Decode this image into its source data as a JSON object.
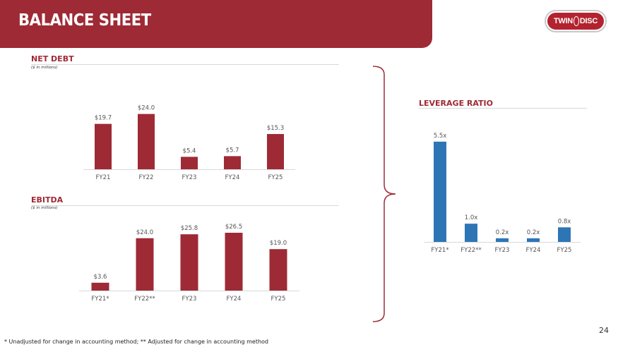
{
  "header": {
    "title": "BALANCE SHEET"
  },
  "logo": {
    "left": "TWIN",
    "right": "DISC"
  },
  "colors": {
    "brand": "#9e2a35",
    "bar_red": "#9e2a35",
    "bar_blue": "#2e75b6"
  },
  "sections": {
    "net_debt": {
      "title": "NET DEBT",
      "subtitle": "($ in millions)"
    },
    "ebitda": {
      "title": "EBITDA",
      "subtitle": "($ in millions)"
    },
    "leverage": {
      "title": "LEVERAGE RATIO"
    }
  },
  "chart_data": [
    {
      "id": "net_debt",
      "type": "bar",
      "categories": [
        "FY21",
        "FY22",
        "FY23",
        "FY24",
        "FY25"
      ],
      "values": [
        19.7,
        24.0,
        5.4,
        5.7,
        15.3
      ],
      "labels": [
        "$19.7",
        "$24.0",
        "$5.4",
        "$5.7",
        "$15.3"
      ],
      "ylim": [
        0,
        30
      ],
      "color": "#9e2a35",
      "grid": false
    },
    {
      "id": "ebitda",
      "type": "bar",
      "categories": [
        "FY21*",
        "FY22**",
        "FY23",
        "FY24",
        "FY25"
      ],
      "values": [
        3.6,
        24.0,
        25.8,
        26.5,
        19.0
      ],
      "labels": [
        "$3.6",
        "$24.0",
        "$25.8",
        "$26.5",
        "$19.0"
      ],
      "ylim": [
        0,
        32
      ],
      "color": "#9e2a35",
      "grid": false
    },
    {
      "id": "leverage",
      "type": "bar",
      "categories": [
        "FY21*",
        "FY22**",
        "FY23",
        "FY24",
        "FY25"
      ],
      "values": [
        5.5,
        1.0,
        0.2,
        0.2,
        0.8
      ],
      "labels": [
        "5.5x",
        "1.0x",
        "0.2x",
        "0.2x",
        "0.8x"
      ],
      "ylim": [
        0,
        6.5
      ],
      "color": "#2e75b6",
      "grid": false
    }
  ],
  "footnote": "* Unadjusted for change in accounting method;  ** Adjusted for change in accounting method",
  "page_number": "24"
}
